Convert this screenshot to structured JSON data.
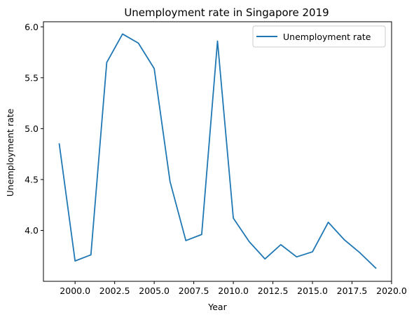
{
  "chart_data": {
    "type": "line",
    "title": "Unemployment rate in Singapore 2019",
    "xlabel": "Year",
    "ylabel": "Unemployment rate",
    "xlim": [
      1998.0,
      2020.0
    ],
    "ylim": [
      3.5,
      6.05
    ],
    "xticks": [
      2000.0,
      2002.5,
      2005.0,
      2007.5,
      2010.0,
      2012.5,
      2015.0,
      2017.5,
      2020.0
    ],
    "xtick_labels": [
      "2000.0",
      "2002.5",
      "2005.0",
      "2007.5",
      "2010.0",
      "2012.5",
      "2015.0",
      "2017.5",
      "2020.0"
    ],
    "yticks": [
      4.0,
      4.5,
      5.0,
      5.5,
      6.0
    ],
    "ytick_labels": [
      "4.0",
      "4.5",
      "5.0",
      "5.5",
      "6.0"
    ],
    "grid": false,
    "legend_position": "top-right",
    "series": [
      {
        "name": "Unemployment rate",
        "color": "#1f77b4",
        "x": [
          1999,
          2000,
          2001,
          2002,
          2003,
          2004,
          2005,
          2006,
          2007,
          2008,
          2009,
          2010,
          2011,
          2012,
          2013,
          2014,
          2015,
          2016,
          2017,
          2018,
          2019
        ],
        "values": [
          4.85,
          3.7,
          3.76,
          5.65,
          5.93,
          5.84,
          5.59,
          4.48,
          3.9,
          3.96,
          5.86,
          4.12,
          3.89,
          3.72,
          3.86,
          3.74,
          3.79,
          4.08,
          3.91,
          3.78,
          3.63
        ]
      }
    ]
  }
}
